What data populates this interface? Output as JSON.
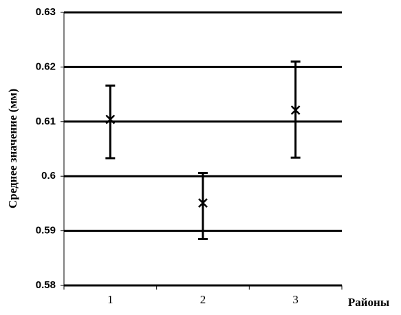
{
  "chart_data": {
    "type": "errorbar",
    "x_label": "Районы",
    "y_label": "Среднее значение (мм)",
    "categories": [
      "1",
      "2",
      "3"
    ],
    "values": [
      0.6104,
      0.5951,
      0.6121
    ],
    "error_minus": [
      0.0071,
      0.0066,
      0.0087
    ],
    "error_plus": [
      0.0062,
      0.0055,
      0.0089
    ],
    "color": "#000000",
    "ylim": [
      0.58,
      0.63
    ],
    "yticks": [
      0.58,
      0.59,
      0.6,
      0.61,
      0.62,
      0.63
    ],
    "grid": true
  }
}
